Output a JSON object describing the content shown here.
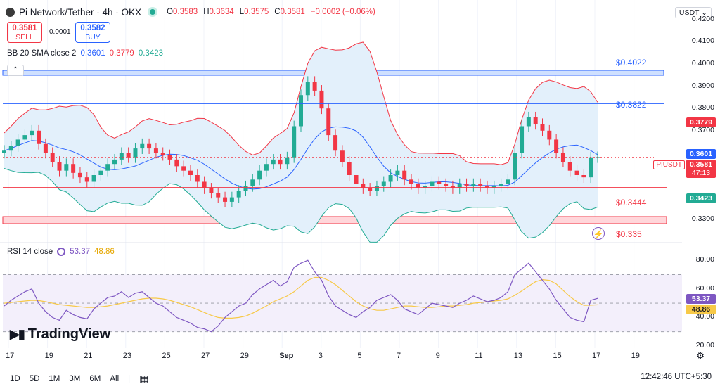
{
  "header": {
    "title": "Pi Network/Tether · 4h · OKX",
    "ohlc": {
      "o_label": "O",
      "o": "0.3583",
      "h_label": "H",
      "h": "0.3634",
      "l_label": "L",
      "l": "0.3575",
      "c_label": "C",
      "c": "0.3581",
      "chg": "−0.0002 (−0.06%)"
    },
    "sell_price": "0.3581",
    "sell_label": "SELL",
    "spread": "0.0001",
    "buy_price": "0.3582",
    "buy_label": "BUY",
    "currency": "USDT ⌄"
  },
  "indicators": {
    "bb": {
      "label": "BB 20 SMA close 2",
      "v1": "0.3601",
      "v2": "0.3779",
      "v3": "0.3423"
    },
    "rsi": {
      "label": "RSI 14 close",
      "v1": "53.37",
      "v2": "48.86"
    }
  },
  "price_axis": [
    "0.4200",
    "0.4100",
    "0.4000",
    "0.3900",
    "0.3800",
    "0.3700",
    "0.3600",
    "0.3500",
    "0.3400",
    "0.3300"
  ],
  "rsi_axis": [
    "80.00",
    "60.00",
    "40.00",
    "20.00"
  ],
  "price_tags": {
    "bb_upper": "0.3779",
    "bb_mid": "0.3601",
    "symbol": "PIUSDT",
    "last": "0.3581",
    "countdown": "47:13",
    "bb_lower": "0.3423",
    "rsi_a": "53.37",
    "rsi_b": "48.86"
  },
  "levels": [
    {
      "label": "$0.4022",
      "value": 0.4022
    },
    {
      "label": "$0.3822",
      "value": 0.3822
    },
    {
      "label": "$0.3444",
      "value": 0.3444
    },
    {
      "label": "$0.335",
      "value": 0.335
    }
  ],
  "x_axis": [
    "17",
    "19",
    "21",
    "23",
    "25",
    "27",
    "29",
    "Sep",
    "3",
    "5",
    "7",
    "9",
    "11",
    "13",
    "15",
    "17",
    "19"
  ],
  "bottom_bar": {
    "ranges": [
      "1D",
      "5D",
      "1M",
      "3M",
      "6M",
      "All"
    ],
    "time": "12:42:46 UTC+5:30"
  },
  "brand": "TradingView",
  "colors": {
    "up": "#22ab94",
    "down": "#f23645",
    "bb_mid": "#2962ff",
    "bb_band": "#f23645",
    "rsi": "#7e57c2",
    "rsi_ma": "#f7c948"
  },
  "chart_data": {
    "type": "candlestick",
    "price_ylim": [
      0.325,
      0.425
    ],
    "rsi_ylim": [
      20,
      85
    ],
    "closes": [
      0.361,
      0.363,
      0.366,
      0.368,
      0.37,
      0.364,
      0.36,
      0.356,
      0.352,
      0.355,
      0.351,
      0.349,
      0.347,
      0.35,
      0.352,
      0.355,
      0.357,
      0.36,
      0.358,
      0.362,
      0.364,
      0.362,
      0.36,
      0.359,
      0.357,
      0.354,
      0.352,
      0.35,
      0.347,
      0.344,
      0.342,
      0.34,
      0.338,
      0.34,
      0.343,
      0.345,
      0.348,
      0.352,
      0.355,
      0.357,
      0.355,
      0.358,
      0.372,
      0.386,
      0.392,
      0.388,
      0.38,
      0.368,
      0.361,
      0.356,
      0.35,
      0.346,
      0.344,
      0.343,
      0.345,
      0.347,
      0.35,
      0.352,
      0.348,
      0.346,
      0.344,
      0.345,
      0.347,
      0.346,
      0.345,
      0.344,
      0.346,
      0.345,
      0.346,
      0.345,
      0.344,
      0.345,
      0.346,
      0.348,
      0.36,
      0.372,
      0.376,
      0.373,
      0.37,
      0.366,
      0.36,
      0.356,
      0.352,
      0.35,
      0.349,
      0.358,
      0.3581
    ],
    "rsi": [
      48,
      52,
      55,
      58,
      60,
      50,
      44,
      40,
      38,
      45,
      42,
      40,
      39,
      46,
      50,
      54,
      55,
      58,
      54,
      57,
      58,
      54,
      50,
      48,
      44,
      40,
      38,
      36,
      33,
      32,
      30,
      34,
      40,
      44,
      48,
      50,
      56,
      60,
      63,
      66,
      62,
      65,
      75,
      78,
      80,
      72,
      66,
      55,
      48,
      45,
      42,
      40,
      44,
      47,
      52,
      54,
      56,
      52,
      46,
      44,
      42,
      46,
      50,
      49,
      48,
      47,
      50,
      52,
      55,
      53,
      51,
      52,
      54,
      58,
      70,
      74,
      78,
      72,
      66,
      60,
      52,
      46,
      40,
      38,
      37,
      52,
      53.37
    ],
    "rsi_ma": [
      50,
      50.5,
      51,
      51.5,
      52,
      51.8,
      51,
      50,
      49,
      48.5,
      48,
      47.5,
      47,
      47,
      47.5,
      48,
      49,
      50,
      51,
      52,
      53,
      53.5,
      53.5,
      53,
      52,
      50.5,
      49,
      47.5,
      45.5,
      43.5,
      41.5,
      40,
      39.5,
      39.5,
      40,
      41,
      43,
      45.5,
      48,
      51,
      53,
      55,
      58,
      62,
      66,
      68,
      68,
      66,
      63,
      59,
      55,
      51,
      48,
      46,
      45,
      45,
      46,
      47,
      48,
      48,
      47.5,
      47,
      47,
      47.5,
      48,
      48,
      48.5,
      49,
      50,
      50.5,
      51,
      51.5,
      52,
      53,
      55.5,
      58.5,
      62,
      65,
      66.5,
      66,
      63.5,
      59,
      54.5,
      51,
      48.5,
      48.6,
      48.86
    ]
  }
}
